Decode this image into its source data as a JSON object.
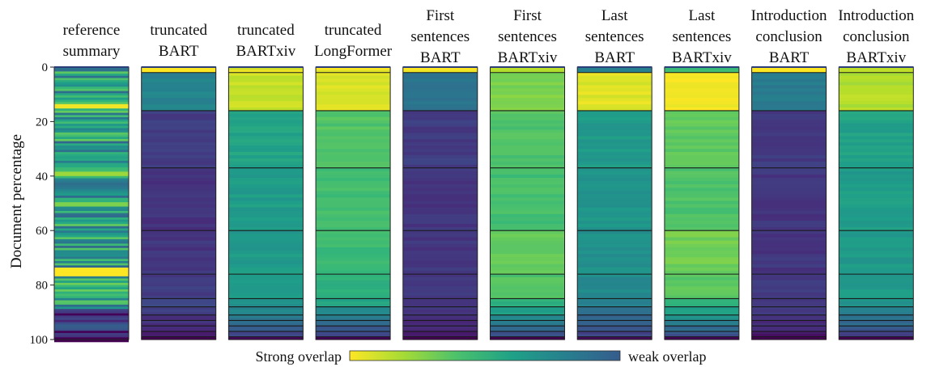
{
  "chart_data": {
    "type": "heatmap",
    "ylabel": "Document percentage",
    "ylim": [
      0,
      100
    ],
    "yticks": [
      "0",
      "20",
      "40",
      "60",
      "80",
      "100"
    ],
    "grid": true,
    "colorbar": {
      "left_label": "Strong overlap",
      "right_label": "weak overlap",
      "colors": [
        "#fde725",
        "#a5db36",
        "#4ac16d",
        "#1fa187",
        "#277f8e",
        "#365c8d"
      ]
    },
    "segment_bounds": [
      0,
      2,
      16,
      37,
      60,
      76,
      85,
      88,
      91,
      93,
      95,
      97,
      99,
      100
    ],
    "columns": [
      {
        "title": [
          "reference",
          "summary"
        ],
        "style": "stripes"
      },
      {
        "title": [
          "truncated",
          "BART"
        ],
        "levels": [
          0.0,
          0.55,
          0.82,
          0.85,
          0.84,
          0.82,
          0.8,
          0.82,
          0.85,
          0.86,
          0.88,
          0.92,
          1.0
        ]
      },
      {
        "title": [
          "truncated",
          "BARTxiv"
        ],
        "levels": [
          0.05,
          0.08,
          0.42,
          0.45,
          0.46,
          0.47,
          0.5,
          0.55,
          0.6,
          0.65,
          0.7,
          0.78,
          1.0
        ]
      },
      {
        "title": [
          "truncated",
          "LongFormer"
        ],
        "levels": [
          0.02,
          0.05,
          0.28,
          0.3,
          0.32,
          0.36,
          0.42,
          0.5,
          0.58,
          0.65,
          0.72,
          0.8,
          1.0
        ]
      },
      {
        "title": [
          "First",
          "sentences",
          "BART"
        ],
        "levels": [
          0.0,
          0.62,
          0.82,
          0.84,
          0.84,
          0.84,
          0.82,
          0.84,
          0.86,
          0.88,
          0.9,
          0.94,
          1.0
        ]
      },
      {
        "title": [
          "First",
          "sentences",
          "BARTxiv"
        ],
        "levels": [
          0.1,
          0.2,
          0.28,
          0.3,
          0.24,
          0.28,
          0.36,
          0.44,
          0.52,
          0.6,
          0.68,
          0.76,
          1.0
        ]
      },
      {
        "title": [
          "Last",
          "sentences",
          "BART"
        ],
        "levels": [
          0.55,
          0.05,
          0.46,
          0.48,
          0.5,
          0.52,
          0.56,
          0.62,
          0.66,
          0.7,
          0.74,
          0.8,
          1.0
        ]
      },
      {
        "title": [
          "Last",
          "sentences",
          "BARTxiv"
        ],
        "levels": [
          0.3,
          0.02,
          0.25,
          0.28,
          0.22,
          0.26,
          0.34,
          0.42,
          0.5,
          0.58,
          0.66,
          0.74,
          1.0
        ]
      },
      {
        "title": [
          "Introduction",
          "conclusion",
          "BART"
        ],
        "levels": [
          0.0,
          0.58,
          0.83,
          0.84,
          0.84,
          0.83,
          0.82,
          0.84,
          0.86,
          0.88,
          0.9,
          0.94,
          1.0
        ]
      },
      {
        "title": [
          "Introduction",
          "conclusion",
          "BARTxiv"
        ],
        "levels": [
          0.1,
          0.12,
          0.43,
          0.45,
          0.46,
          0.46,
          0.5,
          0.56,
          0.62,
          0.66,
          0.72,
          0.8,
          1.0
        ]
      }
    ]
  }
}
